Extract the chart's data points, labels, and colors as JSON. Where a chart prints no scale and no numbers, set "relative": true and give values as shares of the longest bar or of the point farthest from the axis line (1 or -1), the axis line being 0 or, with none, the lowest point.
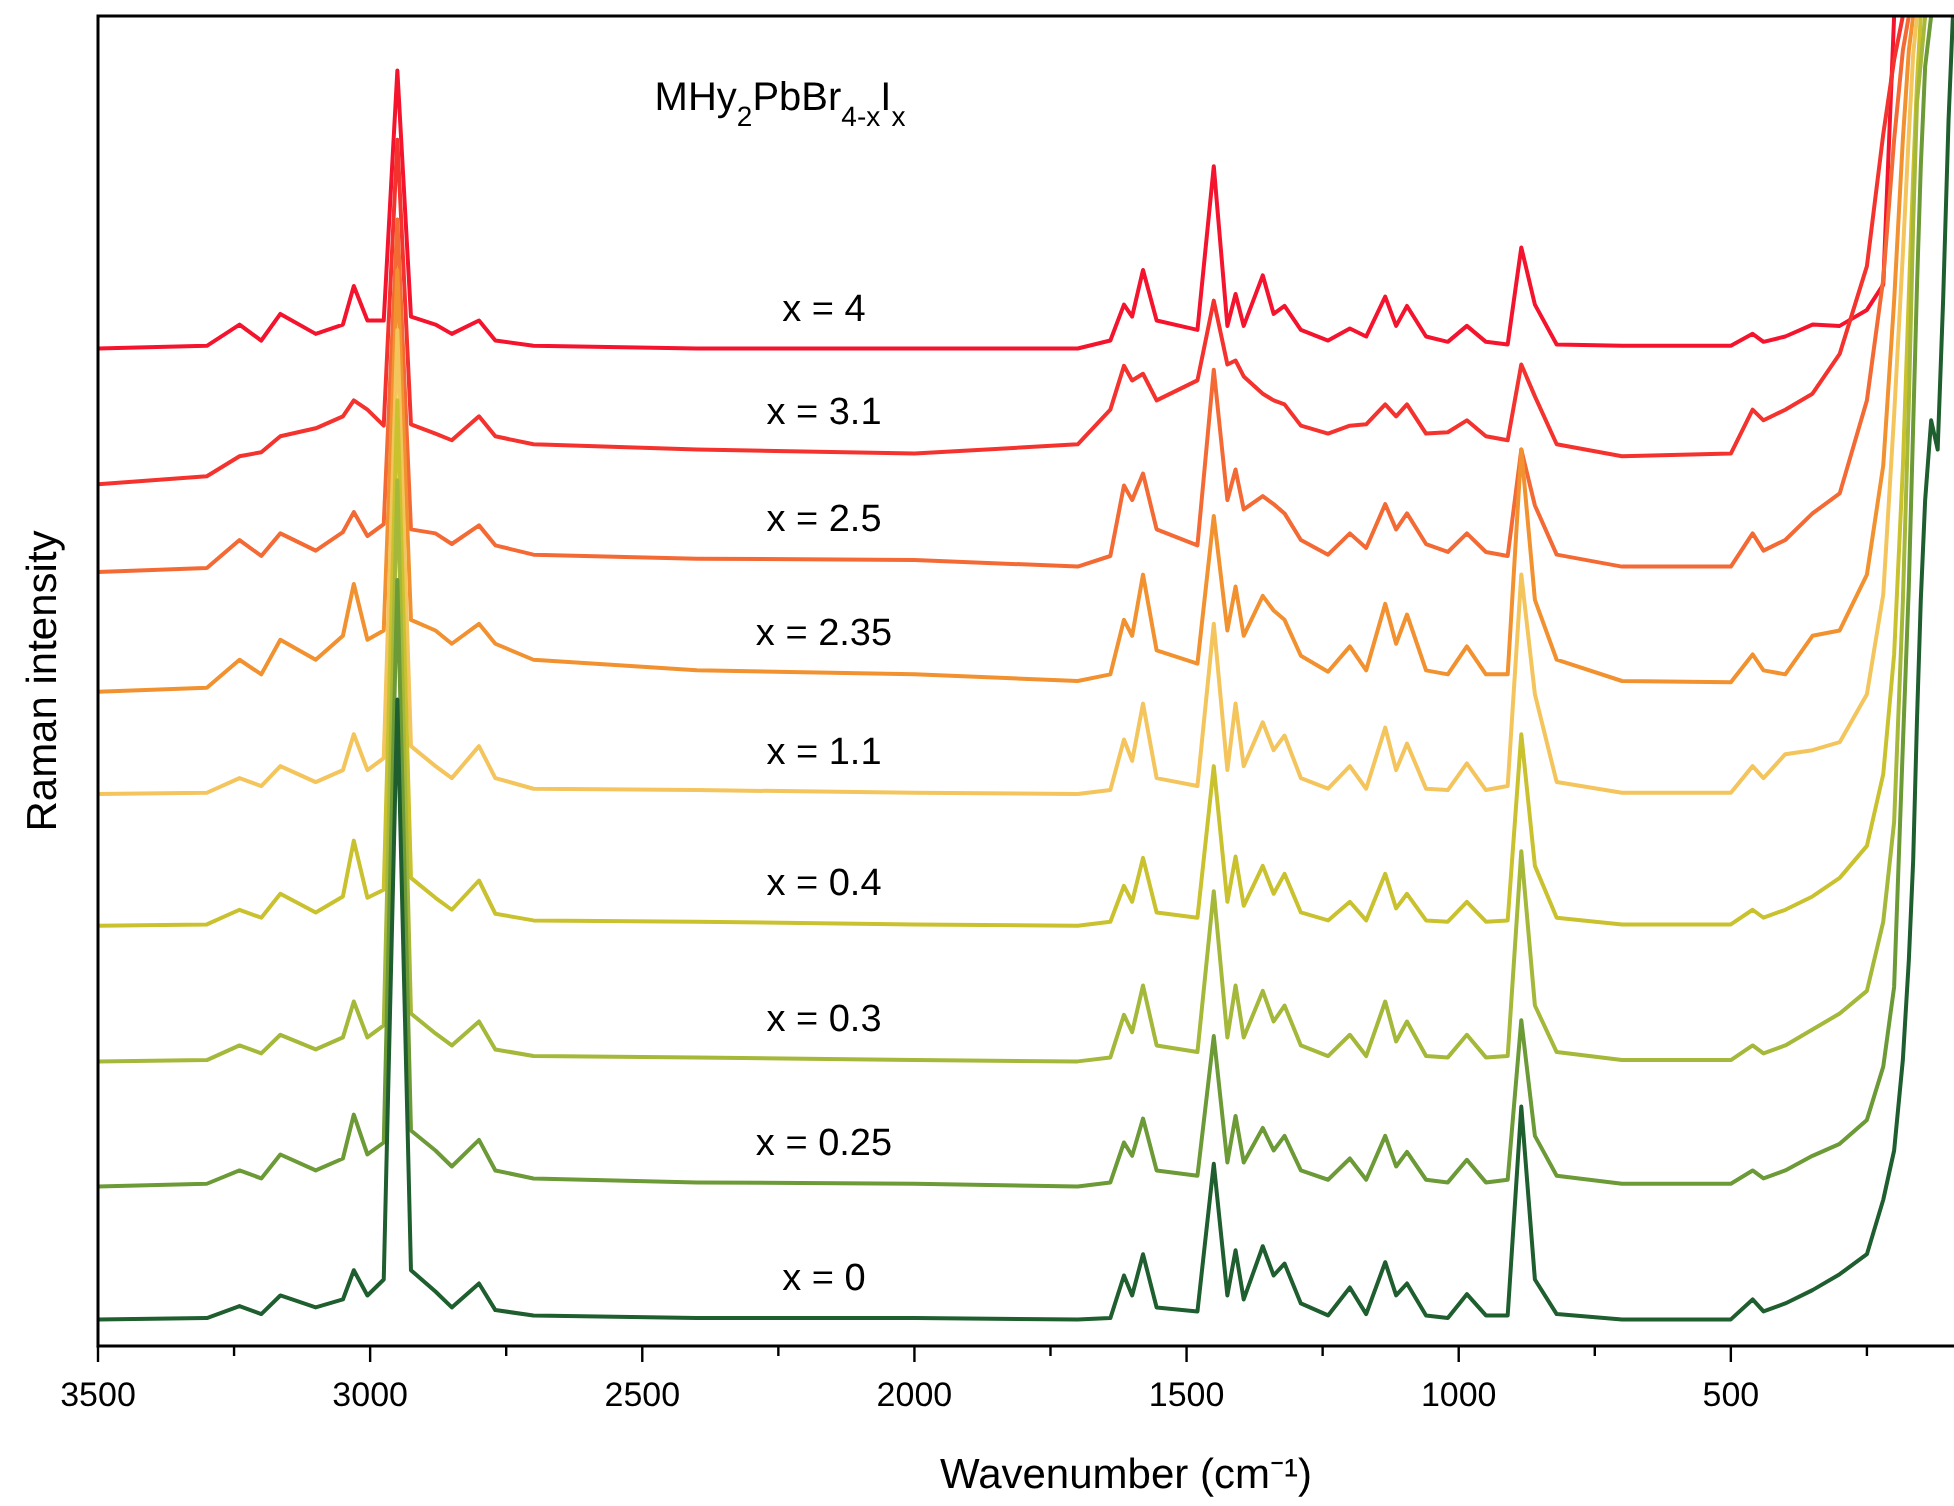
{
  "chart_data": {
    "type": "line",
    "title": "MHy$_{2}$PbBr$_{4-x}$I$_{x}$",
    "xlabel": "Wavenumber (cm⁻¹)",
    "ylabel": "Raman intensity",
    "relative": true,
    "tick_labels": "x",
    "xlim": [
      3500,
      90
    ],
    "xticks": [
      3500,
      {
        "value": 3250,
        "label": null
      },
      3000,
      {
        "value": 2750,
        "label": null
      },
      2500,
      {
        "value": 2250,
        "label": null
      },
      2000,
      {
        "value": 1750,
        "label": null
      },
      1500,
      {
        "value": 1250,
        "label": null
      },
      1000,
      {
        "value": 750,
        "label": null
      },
      500,
      {
        "value": 250,
        "label": null
      }
    ],
    "x": [
      3500,
      3300,
      3240,
      3200,
      3165,
      3100,
      3050,
      3030,
      3005,
      2975,
      2950,
      2925,
      2880,
      2850,
      2800,
      2770,
      2700,
      2400,
      2000,
      1700,
      1640,
      1615,
      1600,
      1580,
      1555,
      1480,
      1450,
      1425,
      1410,
      1395,
      1360,
      1340,
      1320,
      1290,
      1240,
      1200,
      1170,
      1135,
      1115,
      1095,
      1060,
      1020,
      985,
      950,
      910,
      885,
      860,
      820,
      700,
      500,
      460,
      440,
      400,
      350,
      300,
      250,
      220,
      200,
      184,
      173,
      165,
      158,
      151,
      143,
      132,
      120,
      110,
      100,
      92
    ],
    "series": [
      {
        "name": "x = 4",
        "color": "#f5142d",
        "values": [
          0.75,
          0.752,
          0.768,
          0.756,
          0.776,
          0.761,
          0.768,
          0.797,
          0.771,
          0.771,
          0.959,
          0.774,
          0.768,
          0.761,
          0.771,
          0.756,
          0.752,
          0.75,
          0.75,
          0.75,
          0.756,
          0.783,
          0.774,
          0.809,
          0.771,
          0.764,
          0.887,
          0.767,
          0.791,
          0.767,
          0.805,
          0.776,
          0.782,
          0.764,
          0.756,
          0.765,
          0.759,
          0.789,
          0.767,
          0.782,
          0.759,
          0.755,
          0.767,
          0.755,
          0.753,
          0.826,
          0.783,
          0.753,
          0.752,
          0.752,
          0.761,
          0.755,
          0.759,
          0.768,
          0.767,
          0.779,
          0.798,
          1,
          null,
          null,
          null,
          null,
          null,
          null,
          null,
          null,
          null,
          null,
          null
        ]
      },
      {
        "name": "x = 3.1",
        "color": "#f4332e",
        "values": [
          0.648,
          0.654,
          0.669,
          0.672,
          0.684,
          0.69,
          0.699,
          0.711,
          0.704,
          0.692,
          0.907,
          0.693,
          0.686,
          0.681,
          0.699,
          0.684,
          0.678,
          0.674,
          0.671,
          0.678,
          0.704,
          0.737,
          0.726,
          0.731,
          0.711,
          0.726,
          0.786,
          0.738,
          0.741,
          0.729,
          0.716,
          0.711,
          0.708,
          0.692,
          0.686,
          0.692,
          0.693,
          0.708,
          0.699,
          0.708,
          0.686,
          0.687,
          0.696,
          0.684,
          0.681,
          0.738,
          0.714,
          0.678,
          0.669,
          0.671,
          0.704,
          0.696,
          0.704,
          0.716,
          0.746,
          0.812,
          0.911,
          0.967,
          1,
          null,
          null,
          null,
          null,
          null,
          null,
          null,
          null,
          null,
          null
        ]
      },
      {
        "name": "x = 2.5",
        "color": "#f46a35",
        "values": [
          0.582,
          0.585,
          0.606,
          0.594,
          0.611,
          0.598,
          0.612,
          0.627,
          0.609,
          0.618,
          0.847,
          0.614,
          0.611,
          0.603,
          0.617,
          0.602,
          0.595,
          0.592,
          0.591,
          0.586,
          0.594,
          0.647,
          0.636,
          0.656,
          0.614,
          0.602,
          0.734,
          0.636,
          0.659,
          0.629,
          0.639,
          0.633,
          0.626,
          0.606,
          0.595,
          0.611,
          0.6,
          0.633,
          0.614,
          0.626,
          0.603,
          0.597,
          0.611,
          0.597,
          0.594,
          0.674,
          0.632,
          0.595,
          0.586,
          0.586,
          0.611,
          0.598,
          0.606,
          0.626,
          0.641,
          0.711,
          0.802,
          0.907,
          0.974,
          1,
          null,
          null,
          null,
          null,
          null,
          null,
          null,
          null,
          null
        ]
      },
      {
        "name": "x = 2.35",
        "color": "#f2912f",
        "values": [
          0.492,
          0.495,
          0.516,
          0.505,
          0.531,
          0.516,
          0.534,
          0.573,
          0.531,
          0.538,
          0.809,
          0.546,
          0.538,
          0.528,
          0.543,
          0.528,
          0.516,
          0.508,
          0.505,
          0.5,
          0.505,
          0.546,
          0.534,
          0.58,
          0.523,
          0.513,
          0.624,
          0.538,
          0.571,
          0.534,
          0.564,
          0.553,
          0.546,
          0.519,
          0.507,
          0.526,
          0.508,
          0.558,
          0.528,
          0.55,
          0.508,
          0.505,
          0.526,
          0.505,
          0.505,
          0.674,
          0.561,
          0.516,
          0.5,
          0.499,
          0.52,
          0.508,
          0.505,
          0.534,
          0.538,
          0.58,
          0.662,
          0.786,
          0.907,
          0.974,
          1,
          null,
          null,
          null,
          null,
          null,
          null,
          null,
          null
        ]
      },
      {
        "name": "x = 1.1",
        "color": "#f3c55c",
        "values": [
          0.415,
          0.416,
          0.427,
          0.421,
          0.436,
          0.424,
          0.433,
          0.46,
          0.433,
          0.442,
          0.764,
          0.451,
          0.436,
          0.427,
          0.451,
          0.427,
          0.419,
          0.418,
          0.416,
          0.415,
          0.418,
          0.456,
          0.44,
          0.483,
          0.427,
          0.421,
          0.543,
          0.433,
          0.483,
          0.436,
          0.469,
          0.448,
          0.459,
          0.427,
          0.419,
          0.436,
          0.419,
          0.465,
          0.433,
          0.453,
          0.419,
          0.418,
          0.438,
          0.418,
          0.421,
          0.58,
          0.49,
          0.424,
          0.416,
          0.416,
          0.436,
          0.427,
          0.445,
          0.448,
          0.454,
          0.49,
          0.565,
          0.7,
          0.821,
          0.911,
          0.971,
          1,
          null,
          null,
          null,
          null,
          null,
          null,
          null
        ]
      },
      {
        "name": "x = 0.4",
        "color": "#c9c22e",
        "values": [
          0.316,
          0.317,
          0.328,
          0.322,
          0.34,
          0.326,
          0.338,
          0.38,
          0.337,
          0.343,
          0.711,
          0.352,
          0.337,
          0.328,
          0.35,
          0.325,
          0.32,
          0.319,
          0.317,
          0.316,
          0.319,
          0.346,
          0.334,
          0.367,
          0.326,
          0.322,
          0.436,
          0.334,
          0.368,
          0.331,
          0.361,
          0.34,
          0.355,
          0.326,
          0.32,
          0.334,
          0.32,
          0.355,
          0.329,
          0.34,
          0.32,
          0.319,
          0.334,
          0.319,
          0.32,
          0.46,
          0.361,
          0.322,
          0.317,
          0.317,
          0.328,
          0.322,
          0.328,
          0.338,
          0.352,
          0.376,
          0.43,
          0.52,
          0.66,
          0.79,
          0.88,
          0.95,
          1,
          null,
          null,
          null,
          null,
          null,
          null
        ]
      },
      {
        "name": "x = 0.3",
        "color": "#a5b83a",
        "values": [
          0.214,
          0.215,
          0.226,
          0.22,
          0.234,
          0.223,
          0.232,
          0.259,
          0.232,
          0.241,
          0.651,
          0.25,
          0.235,
          0.226,
          0.244,
          0.223,
          0.218,
          0.217,
          0.215,
          0.214,
          0.217,
          0.249,
          0.236,
          0.271,
          0.226,
          0.221,
          0.342,
          0.232,
          0.271,
          0.232,
          0.267,
          0.244,
          0.256,
          0.226,
          0.218,
          0.234,
          0.218,
          0.259,
          0.229,
          0.244,
          0.218,
          0.217,
          0.234,
          0.217,
          0.218,
          0.372,
          0.256,
          0.221,
          0.215,
          0.215,
          0.226,
          0.22,
          0.226,
          0.238,
          0.25,
          0.267,
          0.319,
          0.394,
          0.559,
          0.709,
          0.844,
          0.935,
          0.965,
          1,
          null,
          null,
          null,
          null,
          null
        ]
      },
      {
        "name": "x = 0.25",
        "color": "#6c9a36",
        "values": [
          0.12,
          0.122,
          0.132,
          0.126,
          0.144,
          0.132,
          0.141,
          0.174,
          0.144,
          0.153,
          0.576,
          0.162,
          0.147,
          0.135,
          0.155,
          0.132,
          0.126,
          0.123,
          0.122,
          0.12,
          0.123,
          0.153,
          0.143,
          0.171,
          0.132,
          0.128,
          0.233,
          0.138,
          0.173,
          0.138,
          0.164,
          0.147,
          0.158,
          0.132,
          0.125,
          0.141,
          0.125,
          0.158,
          0.135,
          0.146,
          0.125,
          0.123,
          0.14,
          0.123,
          0.125,
          0.245,
          0.158,
          0.128,
          0.122,
          0.122,
          0.132,
          0.126,
          0.132,
          0.143,
          0.152,
          0.17,
          0.21,
          0.27,
          0.451,
          0.571,
          0.692,
          0.797,
          0.887,
          0.962,
          1,
          null,
          null,
          null,
          null
        ]
      },
      {
        "name": "x = 0",
        "color": "#1f5e2e",
        "values": [
          0.02,
          0.021,
          0.03,
          0.024,
          0.038,
          0.029,
          0.035,
          0.057,
          0.038,
          0.05,
          0.486,
          0.057,
          0.041,
          0.029,
          0.047,
          0.027,
          0.023,
          0.021,
          0.021,
          0.02,
          0.021,
          0.053,
          0.038,
          0.069,
          0.029,
          0.026,
          0.137,
          0.038,
          0.072,
          0.035,
          0.075,
          0.053,
          0.062,
          0.032,
          0.023,
          0.044,
          0.024,
          0.063,
          0.038,
          0.047,
          0.023,
          0.021,
          0.039,
          0.023,
          0.023,
          0.18,
          0.05,
          0.024,
          0.02,
          0.02,
          0.035,
          0.026,
          0.032,
          0.042,
          0.054,
          0.069,
          0.11,
          0.147,
          0.215,
          0.29,
          0.365,
          0.471,
          0.561,
          0.636,
          0.696,
          0.674,
          0.786,
          0.922,
          1
        ]
      }
    ]
  }
}
